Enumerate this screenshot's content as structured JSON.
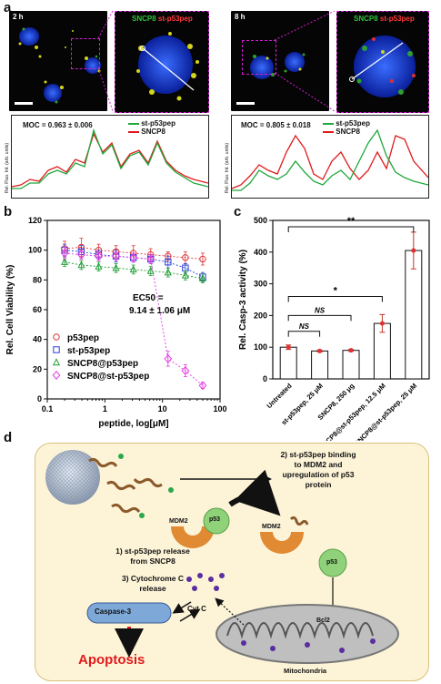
{
  "panel_letters": {
    "a": "a",
    "b": "b",
    "c": "c",
    "d": "d"
  },
  "panel_a": {
    "left": {
      "time": "2 h",
      "legend_green": "SNCP8",
      "legend_red": "st-p53pep",
      "moc": "MOC = 0.963 ± 0.006",
      "plot_legend": [
        "st-p53pep",
        "SNCP8"
      ],
      "ylabel": "Rel. Fluo. Int. (arb. units)"
    },
    "right": {
      "time": "8 h",
      "legend_green": "SNCP8",
      "legend_red": "st-p53pep",
      "moc": "MOC = 0.805 ± 0.018",
      "plot_legend": [
        "st-p53pep",
        "SNCP8"
      ],
      "ylabel": "Rel. Fluo. Int. (arb. units)"
    },
    "colors": {
      "green": "#1fa83c",
      "red": "#e01b1b",
      "magenta": "#d21fd2"
    }
  },
  "chart_data": [
    {
      "type": "scatter",
      "xlabel": "peptide, log[μM]",
      "ylabel": "Rel. Cell Viability (%)",
      "xscale": "log",
      "xlim": [
        0.1,
        100
      ],
      "ylim": [
        0,
        120
      ],
      "xticks": [
        "0.1",
        "1",
        "10",
        "100"
      ],
      "yticks": [
        "0",
        "20",
        "40",
        "60",
        "80",
        "100",
        "120"
      ],
      "annotation": [
        "EC50 =",
        "9.14 ± 1.06 μM"
      ],
      "legend_placement": "bottom-left",
      "series": [
        {
          "name": "p53pep",
          "color": "#e0383b",
          "marker": "circle",
          "x": [
            0.2,
            0.39,
            0.78,
            1.56,
            3.13,
            6.25,
            12.5,
            25,
            50
          ],
          "y": [
            101,
            102,
            100,
            99,
            98,
            97,
            96,
            95,
            94
          ],
          "err": [
            5,
            6,
            4,
            4,
            5,
            4,
            3,
            4,
            4
          ]
        },
        {
          "name": "st-p53pep",
          "color": "#2a3fd6",
          "marker": "square",
          "x": [
            0.2,
            0.39,
            0.78,
            1.56,
            3.13,
            6.25,
            12.5,
            25,
            50
          ],
          "y": [
            100,
            99,
            97,
            96,
            95,
            94,
            92,
            88,
            82
          ],
          "err": [
            4,
            4,
            3,
            4,
            3,
            3,
            4,
            3,
            3
          ]
        },
        {
          "name": "SNCP8@p53pep",
          "color": "#1f9e33",
          "marker": "triangle",
          "x": [
            0.2,
            0.39,
            0.78,
            1.56,
            3.13,
            6.25,
            12.5,
            25,
            50
          ],
          "y": [
            92,
            90,
            89,
            88,
            87,
            86,
            85,
            83,
            81
          ],
          "err": [
            3,
            3,
            3,
            3,
            3,
            3,
            3,
            3,
            3
          ]
        },
        {
          "name": "SNCP8@st-p53pep",
          "color": "#e23de2",
          "marker": "diamond",
          "x": [
            0.2,
            0.39,
            0.78,
            1.56,
            3.13,
            6.25,
            12.5,
            25,
            50
          ],
          "y": [
            98,
            97,
            96,
            96,
            95,
            94,
            27,
            19,
            9
          ],
          "err": [
            4,
            3,
            3,
            3,
            3,
            3,
            5,
            4,
            2
          ]
        }
      ]
    },
    {
      "type": "bar",
      "ylabel": "Rel. Casp-3 activity (%)",
      "ylim": [
        0,
        500
      ],
      "yticks": [
        "0",
        "100",
        "200",
        "300",
        "400",
        "500"
      ],
      "categories": [
        "Untreated",
        "st-p53pep, 25 μM",
        "SNCP8, 250 μg",
        "SNCP8@st-p53pep, 12.5 μM",
        "SNCP8@st-p53pep, 25 μM"
      ],
      "values": [
        100,
        88,
        90,
        175,
        405
      ],
      "errors": [
        7,
        3,
        3,
        28,
        58
      ],
      "significance": [
        {
          "from": 0,
          "to": 1,
          "label": "NS"
        },
        {
          "from": 0,
          "to": 2,
          "label": "NS"
        },
        {
          "from": 0,
          "to": 3,
          "label": "*"
        },
        {
          "from": 0,
          "to": 4,
          "label": "**"
        }
      ]
    }
  ],
  "panel_d": {
    "step2": [
      "2) st-p53pep binding",
      "to MDM2 and",
      "upregulation of p53",
      "protein"
    ],
    "step1": [
      "1) st-p53pep release",
      "from SNCP8"
    ],
    "step3": [
      "3) Cytochrome C",
      "release"
    ],
    "mdm2": "MDM2",
    "p53": "p53",
    "cytc": "Cyt C",
    "casp3": "Caspase-3",
    "bcl2": "Bcl2",
    "apoptosis": "Apoptosis",
    "mito": "Mitochondria"
  }
}
